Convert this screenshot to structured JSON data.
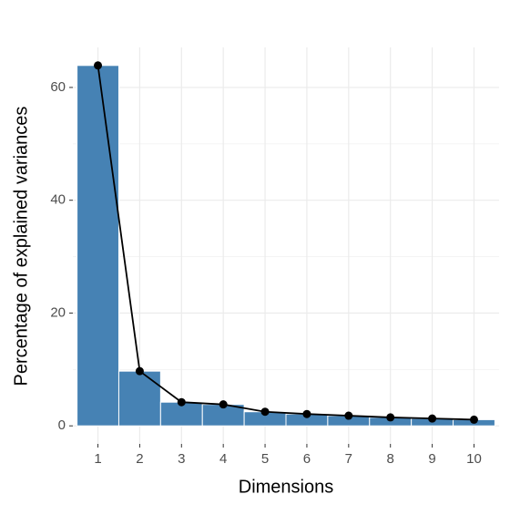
{
  "chart_data": {
    "type": "bar",
    "xlabel": "Dimensions",
    "ylabel": "Percentage of explained variances",
    "categories": [
      "1",
      "2",
      "3",
      "4",
      "5",
      "6",
      "7",
      "8",
      "9",
      "10"
    ],
    "values": [
      63.9,
      9.7,
      4.2,
      3.8,
      2.5,
      2.1,
      1.8,
      1.5,
      1.3,
      1.1
    ],
    "color": "#4682b4",
    "line_color": "#000000",
    "line": true,
    "ylim": [
      -3.2,
      67.1
    ],
    "yticks": [
      0,
      20,
      40,
      60
    ],
    "minor_yticks": [
      10,
      30,
      50
    ],
    "grid": true
  }
}
